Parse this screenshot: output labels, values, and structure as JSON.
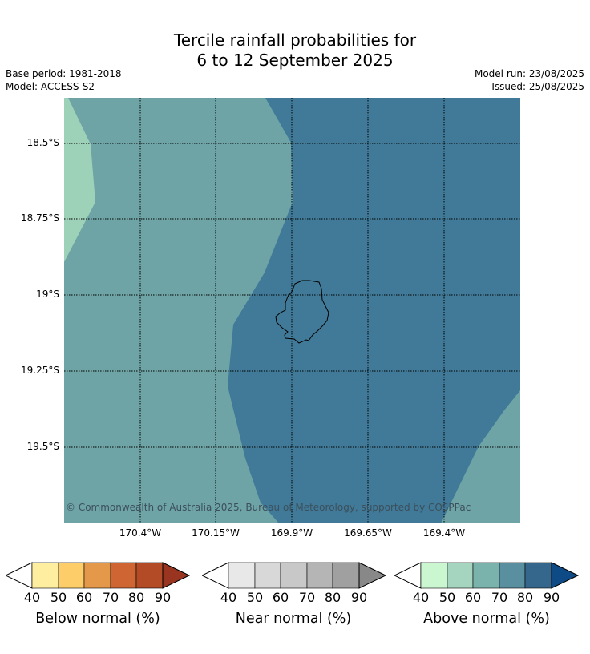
{
  "title": {
    "line1": "Tercile rainfall probabilities for",
    "line2": "6 to 12 September 2025"
  },
  "meta": {
    "base_period": "Base period: 1981-2018",
    "model": "Model: ACCESS-S2",
    "model_run": "Model run: 23/08/2025",
    "issued": "Issued: 25/08/2025"
  },
  "map": {
    "lat_labels": [
      "18.5°S",
      "18.75°S",
      "19°S",
      "19.25°S",
      "19.5°S"
    ],
    "lon_labels": [
      "170.4°W",
      "170.15°W",
      "169.9°W",
      "169.65°W",
      "169.4°W"
    ],
    "copyright": "© Commonwealth of Australia 2025, Bureau of Meteorology, supported by COSPPac",
    "colors": {
      "above_50": "#9dd2b9",
      "above_60": "#6fa4a6",
      "above_70": "#417a98",
      "coastline": "#000000"
    }
  },
  "colorbars": [
    {
      "title": "Below normal (%)",
      "ticks": [
        "40",
        "50",
        "60",
        "70",
        "80",
        "90"
      ],
      "colors": [
        "#ffffff",
        "#feeea0",
        "#fdcd6a",
        "#e39949",
        "#cf6533",
        "#b24b26",
        "#983420"
      ]
    },
    {
      "title": "Near normal (%)",
      "ticks": [
        "40",
        "50",
        "60",
        "70",
        "80",
        "90"
      ],
      "colors": [
        "#ffffff",
        "#e8e8e8",
        "#d8d8d8",
        "#c8c8c8",
        "#b5b5b5",
        "#a0a0a0",
        "#888888"
      ]
    },
    {
      "title": "Above normal (%)",
      "ticks": [
        "40",
        "50",
        "60",
        "70",
        "80",
        "90"
      ],
      "colors": [
        "#ffffff",
        "#cbf7d0",
        "#a5d5be",
        "#7ab3ac",
        "#5a8f9f",
        "#35668b",
        "#0e4a85"
      ]
    }
  ]
}
